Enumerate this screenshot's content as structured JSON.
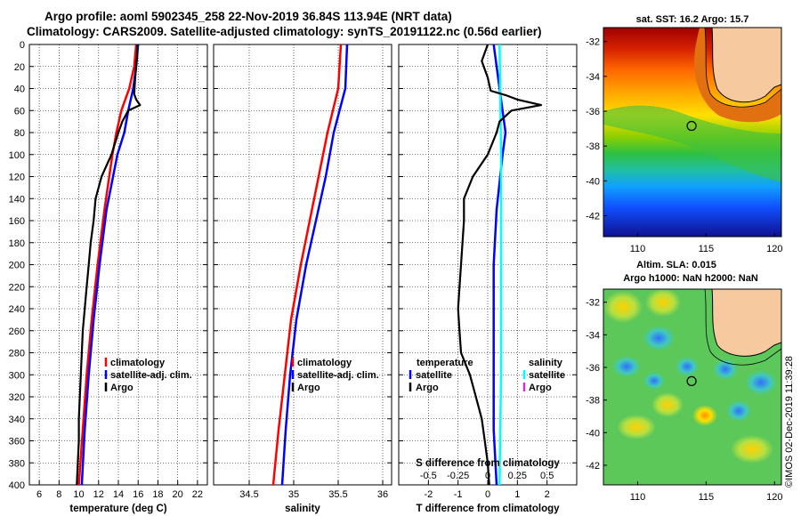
{
  "titles": {
    "line1": "Argo profile: aoml 5902345_258 22-Nov-2019 36.84S 113.94E (NRT data)",
    "line2": "Climatology: CARS2009. Satellite-adjusted climatology: synTS_20191122.nc (0.56d earlier)"
  },
  "credit": "©IMOS 02-Dec-2019 11:39:28",
  "colors": {
    "red": "#ff0000",
    "blue": "#0000ff",
    "black": "#000000",
    "cyan": "#00ffff",
    "magenta": "#cc33cc",
    "land": "#f6c99f"
  },
  "chart_data": [
    {
      "type": "line",
      "name": "temperature",
      "xlabel": "temperature (deg C)",
      "ylabel": "depth",
      "xlim": [
        5,
        23
      ],
      "ylim": [
        0,
        400
      ],
      "xticks": [
        6,
        8,
        10,
        12,
        14,
        16,
        18,
        20,
        22
      ],
      "yticks": [
        0,
        20,
        40,
        60,
        80,
        100,
        120,
        140,
        160,
        180,
        200,
        220,
        240,
        260,
        280,
        300,
        320,
        340,
        360,
        380,
        400
      ],
      "legend": [
        "climatology",
        "satellite-adj. clim.",
        "Argo"
      ],
      "series": [
        {
          "name": "climatology",
          "color": "red",
          "depth": [
            0,
            20,
            40,
            60,
            80,
            100,
            150,
            200,
            250,
            300,
            350,
            400
          ],
          "values": [
            15.8,
            15.6,
            15.1,
            14.3,
            13.8,
            13.4,
            12.6,
            11.9,
            11.3,
            10.8,
            10.4,
            10.0
          ]
        },
        {
          "name": "satellite-adj. clim.",
          "color": "blue",
          "depth": [
            0,
            20,
            40,
            60,
            80,
            100,
            150,
            200,
            250,
            300,
            350,
            400
          ],
          "values": [
            16.0,
            15.8,
            15.5,
            15.0,
            14.6,
            13.9,
            12.8,
            12.1,
            11.5,
            11.0,
            10.6,
            10.3
          ]
        },
        {
          "name": "Argo",
          "color": "black",
          "depth": [
            0,
            10,
            20,
            30,
            45,
            50,
            55,
            60,
            70,
            80,
            100,
            120,
            140,
            160,
            180,
            200,
            220,
            240,
            260,
            280,
            300,
            320,
            340,
            360,
            380,
            400
          ],
          "values": [
            15.9,
            15.9,
            15.8,
            15.7,
            15.6,
            15.8,
            16.2,
            15.0,
            14.4,
            14.0,
            13.3,
            12.3,
            11.7,
            11.5,
            11.2,
            11.0,
            10.8,
            10.6,
            10.4,
            10.3,
            10.2,
            10.1,
            10.0,
            10.0,
            9.9,
            9.8
          ]
        }
      ]
    },
    {
      "type": "line",
      "name": "salinity",
      "xlabel": "salinity",
      "xlim": [
        34.1,
        36.1
      ],
      "ylim": [
        0,
        400
      ],
      "xticks": [
        34.5,
        35,
        35.5,
        36
      ],
      "xticklabels": [
        "34.5",
        "35",
        "35.5",
        "36"
      ],
      "legend": [
        "climatology",
        "satellite-adj. clim.",
        "Argo"
      ],
      "series": [
        {
          "name": "climatology",
          "color": "red",
          "depth": [
            0,
            40,
            80,
            120,
            160,
            200,
            250,
            300,
            350,
            400
          ],
          "values": [
            35.53,
            35.5,
            35.38,
            35.28,
            35.18,
            35.08,
            34.97,
            34.9,
            34.83,
            34.77
          ]
        },
        {
          "name": "satellite-adj. clim.",
          "color": "blue",
          "depth": [
            0,
            40,
            80,
            120,
            160,
            200,
            250,
            300,
            350,
            400
          ],
          "values": [
            35.6,
            35.58,
            35.45,
            35.36,
            35.25,
            35.14,
            35.03,
            34.96,
            34.91,
            34.87
          ]
        }
      ]
    },
    {
      "type": "line",
      "name": "difference",
      "xlabel": "T difference from climatology",
      "top_axis_title": "S difference from climatology",
      "xlim": [
        -3,
        3
      ],
      "ylim": [
        0,
        400
      ],
      "xticks": [
        -2,
        -1,
        0,
        1,
        2
      ],
      "xticklabels": [
        "-2",
        "-1",
        "0",
        "1",
        "2"
      ],
      "top_ticks": [
        -0.5,
        -0.25,
        0,
        0.25,
        0.5
      ],
      "top_ticklabels": [
        "-0.5",
        "-0.25",
        "0",
        "0.25",
        "0.5"
      ],
      "legend_temperature": {
        "title": "temperature",
        "items": [
          "satellite",
          "Argo"
        ]
      },
      "legend_salinity": {
        "title": "salinity",
        "items": [
          "satellite",
          "Argo"
        ]
      },
      "series": [
        {
          "name": "temperature satellite",
          "color": "blue",
          "depth": [
            0,
            40,
            80,
            100,
            150,
            200,
            250,
            300,
            350,
            400
          ],
          "values": [
            0.2,
            0.4,
            0.6,
            0.5,
            0.3,
            0.2,
            0.2,
            0.2,
            0.2,
            0.3
          ]
        },
        {
          "name": "salinity satellite",
          "color": "cyan",
          "depth": [
            0,
            100,
            200,
            300,
            400
          ],
          "values": [
            0.4,
            0.45,
            0.45,
            0.45,
            0.4
          ]
        },
        {
          "name": "temperature Argo",
          "color": "black",
          "depth": [
            0,
            15,
            30,
            42,
            46,
            50,
            55,
            60,
            70,
            80,
            100,
            120,
            140,
            160,
            200,
            240,
            260,
            280,
            300,
            320,
            340,
            360,
            380,
            400
          ],
          "values": [
            0.0,
            -0.2,
            0.0,
            0.1,
            0.6,
            1.0,
            1.8,
            0.8,
            0.4,
            0.3,
            0.0,
            -0.5,
            -0.8,
            -0.8,
            -0.9,
            -1.0,
            -0.95,
            -0.9,
            -0.6,
            -0.4,
            -0.2,
            -0.1,
            0.0,
            0.05
          ]
        }
      ]
    },
    {
      "type": "heatmap",
      "name": "sst-map",
      "title": "sat. SST: 16.2 Argo: 15.7",
      "xticks": [
        110,
        115,
        120
      ],
      "yticks": [
        -32,
        -34,
        -36,
        -38,
        -40,
        -42
      ],
      "xlim": [
        107.5,
        120.5
      ],
      "ylim": [
        -43.2,
        -31.2
      ],
      "marker": [
        113.94,
        -36.84
      ]
    },
    {
      "type": "heatmap",
      "name": "sla-map",
      "title1": "Altim. SLA: 0.015",
      "title2": "Argo h1000: NaN h2000: NaN",
      "xticks": [
        110,
        115,
        120
      ],
      "yticks": [
        -32,
        -34,
        -36,
        -38,
        -40,
        -42
      ],
      "xlim": [
        107.5,
        120.5
      ],
      "ylim": [
        -43.2,
        -31.2
      ],
      "marker": [
        113.94,
        -36.84
      ]
    }
  ]
}
